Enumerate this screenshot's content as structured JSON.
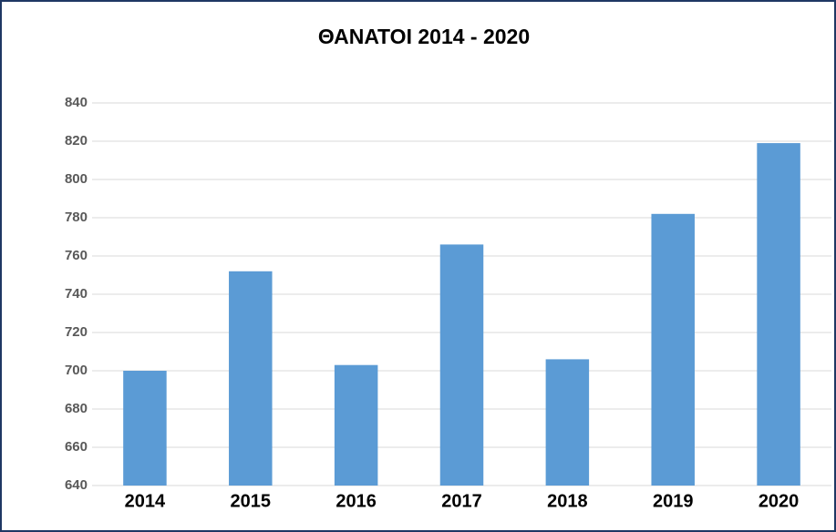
{
  "chart_data": {
    "type": "bar",
    "title": "ΘΑΝΑΤΟΙ 2014 - 2020",
    "categories": [
      "2014",
      "2015",
      "2016",
      "2017",
      "2018",
      "2019",
      "2020"
    ],
    "values": [
      700,
      752,
      703,
      766,
      706,
      782,
      819
    ],
    "color": "#5b9bd5",
    "ylim": [
      640,
      840
    ],
    "yticks": [
      640,
      660,
      680,
      700,
      720,
      740,
      760,
      780,
      800,
      820,
      840
    ],
    "grid": true
  }
}
